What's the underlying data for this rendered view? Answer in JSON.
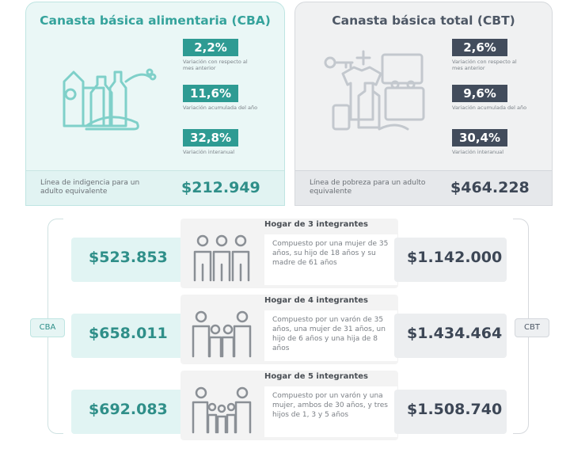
{
  "cba": {
    "title": "Canasta básica alimentaria (CBA)",
    "stats": [
      {
        "value": "2,2%",
        "label": "Variación con respecto al mes anterior"
      },
      {
        "value": "11,6%",
        "label": "Variación acumulada del año"
      },
      {
        "value": "32,8%",
        "label": "Variación interanual"
      }
    ],
    "line_label": "Línea de indigencia para un adulto equivalente",
    "line_value": "$212.949"
  },
  "cbt": {
    "title": "Canasta básica total (CBT)",
    "stats": [
      {
        "value": "2,6%",
        "label": "Variación con respecto al mes anterior"
      },
      {
        "value": "9,6%",
        "label": "Variación acumulada del año"
      },
      {
        "value": "30,4%",
        "label": "Variación interanual"
      }
    ],
    "line_label": "Línea de pobreza para un adulto equivalente",
    "line_value": "$464.228"
  },
  "side_labels": {
    "left": "CBA",
    "right": "CBT"
  },
  "households": [
    {
      "title": "Hogar de 3 integrantes",
      "description": "Compuesto por una mujer de 35 años, su hijo de 18 años y su madre de 61 años",
      "cba": "$523.853",
      "cbt": "$1.142.000"
    },
    {
      "title": "Hogar de 4 integrantes",
      "description": "Compuesto por un varón de 35 años, una mujer de 31 años, un hijo de 6 años y una hija de 8 años",
      "cba": "$658.011",
      "cbt": "$1.434.464"
    },
    {
      "title": "Hogar de 5 integrantes",
      "description": "Compuesto por un varón y una mujer, ambos de 30 años, y tres hijos de 1, 3 y 5 años",
      "cba": "$692.083",
      "cbt": "$1.508.740"
    }
  ],
  "colors": {
    "teal": "#2e9b93",
    "slate": "#424c5c"
  },
  "icons": {
    "cba": "grocery-icon",
    "cbt": "goods-icon",
    "family": "family-icon"
  }
}
